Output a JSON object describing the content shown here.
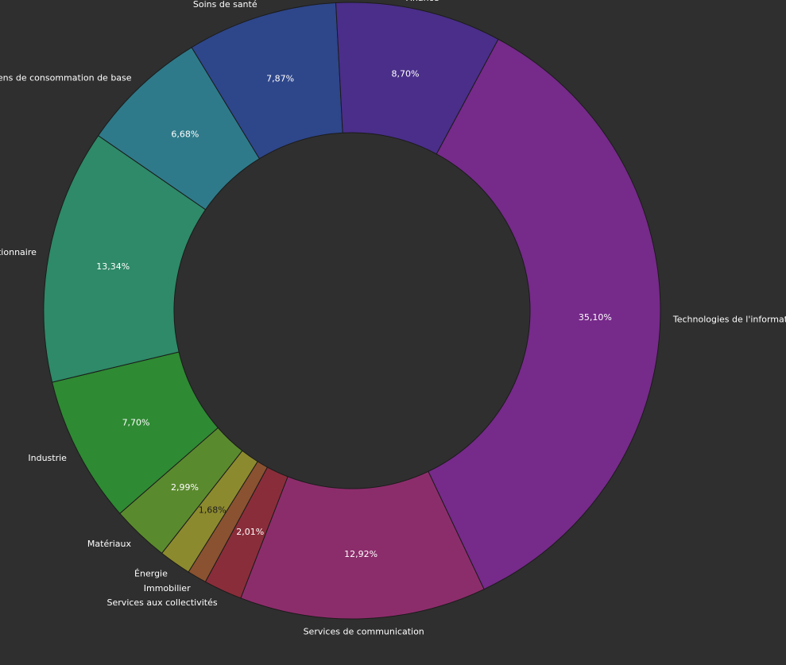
{
  "chart_data": {
    "type": "pie",
    "donut": true,
    "title": "",
    "legend": "none",
    "slices": [
      {
        "label": "Technologies de l'information",
        "value": 35.1,
        "value_label": "35,10%",
        "color": "#762a8a"
      },
      {
        "label": "Services de communication",
        "value": 12.92,
        "value_label": "12,92%",
        "color": "#8c2d6b"
      },
      {
        "label": "Services aux collectivités",
        "value": 2.01,
        "value_label": "2,01%",
        "color": "#8a2d3a"
      },
      {
        "label": "Immobilier",
        "value": 1.01,
        "value_label": "",
        "color": "#8a5230"
      },
      {
        "label": "Énergie",
        "value": 1.68,
        "value_label": "1,68%",
        "color": "#8c8a2e"
      },
      {
        "label": "Matériaux",
        "value": 2.99,
        "value_label": "2,99%",
        "color": "#5a8a2e"
      },
      {
        "label": "Industrie",
        "value": 7.7,
        "value_label": "7,70%",
        "color": "#2e8a33"
      },
      {
        "label": "Consommation discrétionnaire",
        "value": 13.34,
        "value_label": "13,34%",
        "color": "#2e8a68"
      },
      {
        "label": "Biens de consommation de base",
        "value": 6.68,
        "value_label": "6,68%",
        "color": "#2e7a8a"
      },
      {
        "label": "Soins de santé",
        "value": 7.87,
        "value_label": "7,87%",
        "color": "#2e468a"
      },
      {
        "label": "Finance",
        "value": 8.7,
        "value_label": "8,70%",
        "color": "#4a2e8a"
      }
    ]
  }
}
